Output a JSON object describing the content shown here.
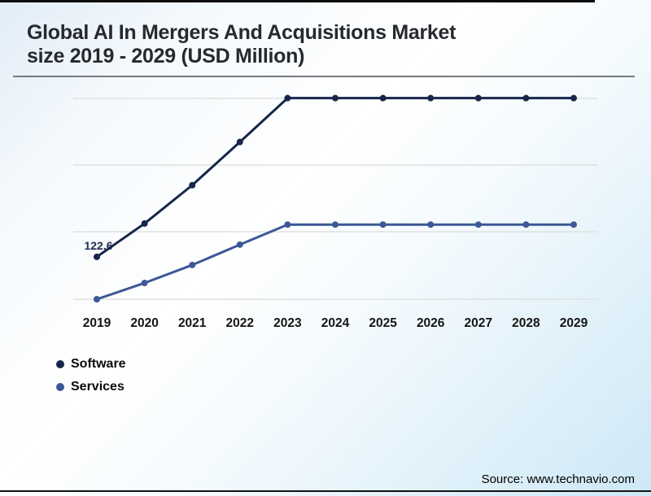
{
  "title": {
    "line1": "Global AI In Mergers And Acquisitions Market",
    "line2": "size 2019 - 2029 (USD Million)"
  },
  "source": "Source: www.technavio.com",
  "legend": [
    {
      "label": "Software",
      "color": "#16264a"
    },
    {
      "label": "Services",
      "color": "#3c5896"
    }
  ],
  "colors": {
    "software_line": "#16264a",
    "services_line": "#3c5896",
    "gridline": "#dfe1df",
    "annotation_text": "#1b2c50"
  },
  "chart_data": {
    "type": "line",
    "title": "Global AI In Mergers And Acquisitions Market size 2019 - 2029 (USD Million)",
    "xlabel": "",
    "ylabel": "USD Million",
    "x": [
      2019,
      2020,
      2021,
      2022,
      2023,
      2024,
      2025,
      2026,
      2027,
      2028,
      2029
    ],
    "series": [
      {
        "name": "Software",
        "color": "#16264a",
        "values": [
          122.6,
          219,
          330,
          455,
          582,
          582,
          582,
          582,
          582,
          582,
          582
        ]
      },
      {
        "name": "Services",
        "color": "#3c5896",
        "values": [
          0,
          47,
          99,
          158,
          216,
          216,
          216,
          216,
          216,
          216,
          216
        ]
      }
    ],
    "data_labels": [
      {
        "series": "Software",
        "x": 2019,
        "value": 122.6,
        "text": "122.6"
      }
    ],
    "y_axis_tick_labels_visible": false,
    "gridlines": "horizontal",
    "legend_position": "bottom-left"
  }
}
